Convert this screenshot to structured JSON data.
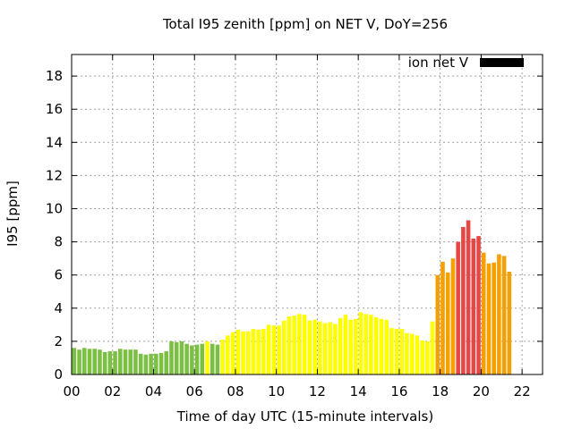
{
  "chart_data": {
    "type": "bar",
    "title": "Total I95 zenith [ppm] on NET V, DoY=256",
    "xlabel": "Time of day UTC (15-minute intervals)",
    "ylabel": "I95 [ppm]",
    "legend": {
      "label": "ion net V",
      "color": "#000000",
      "placement": "top-right"
    },
    "grid": true,
    "xlim": [
      0,
      23
    ],
    "ylim": [
      0,
      19.3
    ],
    "x_tick_values": [
      0,
      2,
      4,
      6,
      8,
      10,
      12,
      14,
      16,
      18,
      20,
      22
    ],
    "x_tick_labels": [
      "00",
      "02",
      "04",
      "06",
      "08",
      "10",
      "12",
      "14",
      "16",
      "18",
      "20",
      "22"
    ],
    "y_tick_values": [
      0,
      2,
      4,
      6,
      8,
      10,
      12,
      14,
      16,
      18
    ],
    "y_tick_labels": [
      "0",
      "2",
      "4",
      "6",
      "8",
      "10",
      "12",
      "14",
      "16",
      "18"
    ],
    "bar_width_hours": 0.2,
    "colors": {
      "green": "#7bc043",
      "yellow": "#ffff00",
      "orange": "#f5a000",
      "red": "#e84545"
    },
    "bars": [
      {
        "x": 0.125,
        "y": 1.6,
        "c": "green"
      },
      {
        "x": 0.375,
        "y": 1.5,
        "c": "green"
      },
      {
        "x": 0.625,
        "y": 1.6,
        "c": "green"
      },
      {
        "x": 0.875,
        "y": 1.55,
        "c": "green"
      },
      {
        "x": 1.125,
        "y": 1.55,
        "c": "green"
      },
      {
        "x": 1.375,
        "y": 1.5,
        "c": "green"
      },
      {
        "x": 1.625,
        "y": 1.35,
        "c": "green"
      },
      {
        "x": 1.875,
        "y": 1.4,
        "c": "green"
      },
      {
        "x": 2.125,
        "y": 1.4,
        "c": "green"
      },
      {
        "x": 2.375,
        "y": 1.55,
        "c": "green"
      },
      {
        "x": 2.625,
        "y": 1.5,
        "c": "green"
      },
      {
        "x": 2.875,
        "y": 1.5,
        "c": "green"
      },
      {
        "x": 3.125,
        "y": 1.5,
        "c": "green"
      },
      {
        "x": 3.375,
        "y": 1.25,
        "c": "green"
      },
      {
        "x": 3.625,
        "y": 1.2,
        "c": "green"
      },
      {
        "x": 3.875,
        "y": 1.25,
        "c": "green"
      },
      {
        "x": 4.125,
        "y": 1.25,
        "c": "green"
      },
      {
        "x": 4.375,
        "y": 1.3,
        "c": "green"
      },
      {
        "x": 4.625,
        "y": 1.4,
        "c": "green"
      },
      {
        "x": 4.875,
        "y": 2.0,
        "c": "green"
      },
      {
        "x": 5.125,
        "y": 1.95,
        "c": "green"
      },
      {
        "x": 5.375,
        "y": 2.0,
        "c": "green"
      },
      {
        "x": 5.625,
        "y": 1.85,
        "c": "green"
      },
      {
        "x": 5.875,
        "y": 1.75,
        "c": "green"
      },
      {
        "x": 6.125,
        "y": 1.8,
        "c": "green"
      },
      {
        "x": 6.375,
        "y": 1.85,
        "c": "green"
      },
      {
        "x": 6.625,
        "y": 2.0,
        "c": "yellow"
      },
      {
        "x": 6.875,
        "y": 1.85,
        "c": "green"
      },
      {
        "x": 7.125,
        "y": 1.8,
        "c": "green"
      },
      {
        "x": 7.375,
        "y": 2.1,
        "c": "yellow"
      },
      {
        "x": 7.625,
        "y": 2.35,
        "c": "yellow"
      },
      {
        "x": 7.875,
        "y": 2.55,
        "c": "yellow"
      },
      {
        "x": 8.125,
        "y": 2.7,
        "c": "yellow"
      },
      {
        "x": 8.375,
        "y": 2.6,
        "c": "yellow"
      },
      {
        "x": 8.625,
        "y": 2.6,
        "c": "yellow"
      },
      {
        "x": 8.875,
        "y": 2.75,
        "c": "yellow"
      },
      {
        "x": 9.125,
        "y": 2.7,
        "c": "yellow"
      },
      {
        "x": 9.375,
        "y": 2.75,
        "c": "yellow"
      },
      {
        "x": 9.625,
        "y": 3.0,
        "c": "yellow"
      },
      {
        "x": 9.875,
        "y": 2.95,
        "c": "yellow"
      },
      {
        "x": 10.125,
        "y": 2.95,
        "c": "yellow"
      },
      {
        "x": 10.375,
        "y": 3.25,
        "c": "yellow"
      },
      {
        "x": 10.625,
        "y": 3.5,
        "c": "yellow"
      },
      {
        "x": 10.875,
        "y": 3.55,
        "c": "yellow"
      },
      {
        "x": 11.125,
        "y": 3.65,
        "c": "yellow"
      },
      {
        "x": 11.375,
        "y": 3.6,
        "c": "yellow"
      },
      {
        "x": 11.625,
        "y": 3.25,
        "c": "yellow"
      },
      {
        "x": 11.875,
        "y": 3.3,
        "c": "yellow"
      },
      {
        "x": 12.125,
        "y": 3.2,
        "c": "yellow"
      },
      {
        "x": 12.375,
        "y": 3.1,
        "c": "yellow"
      },
      {
        "x": 12.625,
        "y": 3.15,
        "c": "yellow"
      },
      {
        "x": 12.875,
        "y": 3.05,
        "c": "yellow"
      },
      {
        "x": 13.125,
        "y": 3.4,
        "c": "yellow"
      },
      {
        "x": 13.375,
        "y": 3.6,
        "c": "yellow"
      },
      {
        "x": 13.625,
        "y": 3.3,
        "c": "yellow"
      },
      {
        "x": 13.875,
        "y": 3.35,
        "c": "yellow"
      },
      {
        "x": 14.125,
        "y": 3.75,
        "c": "yellow"
      },
      {
        "x": 14.375,
        "y": 3.65,
        "c": "yellow"
      },
      {
        "x": 14.625,
        "y": 3.6,
        "c": "yellow"
      },
      {
        "x": 14.875,
        "y": 3.45,
        "c": "yellow"
      },
      {
        "x": 15.125,
        "y": 3.35,
        "c": "yellow"
      },
      {
        "x": 15.375,
        "y": 3.3,
        "c": "yellow"
      },
      {
        "x": 15.625,
        "y": 2.8,
        "c": "yellow"
      },
      {
        "x": 15.875,
        "y": 2.75,
        "c": "yellow"
      },
      {
        "x": 16.125,
        "y": 2.75,
        "c": "yellow"
      },
      {
        "x": 16.375,
        "y": 2.5,
        "c": "yellow"
      },
      {
        "x": 16.625,
        "y": 2.45,
        "c": "yellow"
      },
      {
        "x": 16.875,
        "y": 2.35,
        "c": "yellow"
      },
      {
        "x": 17.125,
        "y": 2.05,
        "c": "yellow"
      },
      {
        "x": 17.375,
        "y": 2.0,
        "c": "yellow"
      },
      {
        "x": 17.625,
        "y": 3.2,
        "c": "yellow"
      },
      {
        "x": 17.875,
        "y": 6.0,
        "c": "orange"
      },
      {
        "x": 18.125,
        "y": 6.8,
        "c": "orange"
      },
      {
        "x": 18.375,
        "y": 6.15,
        "c": "orange"
      },
      {
        "x": 18.625,
        "y": 7.0,
        "c": "orange"
      },
      {
        "x": 18.875,
        "y": 8.0,
        "c": "red"
      },
      {
        "x": 19.125,
        "y": 8.9,
        "c": "red"
      },
      {
        "x": 19.375,
        "y": 9.3,
        "c": "red"
      },
      {
        "x": 19.625,
        "y": 8.2,
        "c": "red"
      },
      {
        "x": 19.875,
        "y": 8.35,
        "c": "red"
      },
      {
        "x": 20.125,
        "y": 7.35,
        "c": "orange"
      },
      {
        "x": 20.375,
        "y": 6.7,
        "c": "orange"
      },
      {
        "x": 20.625,
        "y": 6.75,
        "c": "orange"
      },
      {
        "x": 20.875,
        "y": 7.25,
        "c": "orange"
      },
      {
        "x": 21.125,
        "y": 7.15,
        "c": "orange"
      },
      {
        "x": 21.375,
        "y": 6.2,
        "c": "orange"
      }
    ]
  }
}
